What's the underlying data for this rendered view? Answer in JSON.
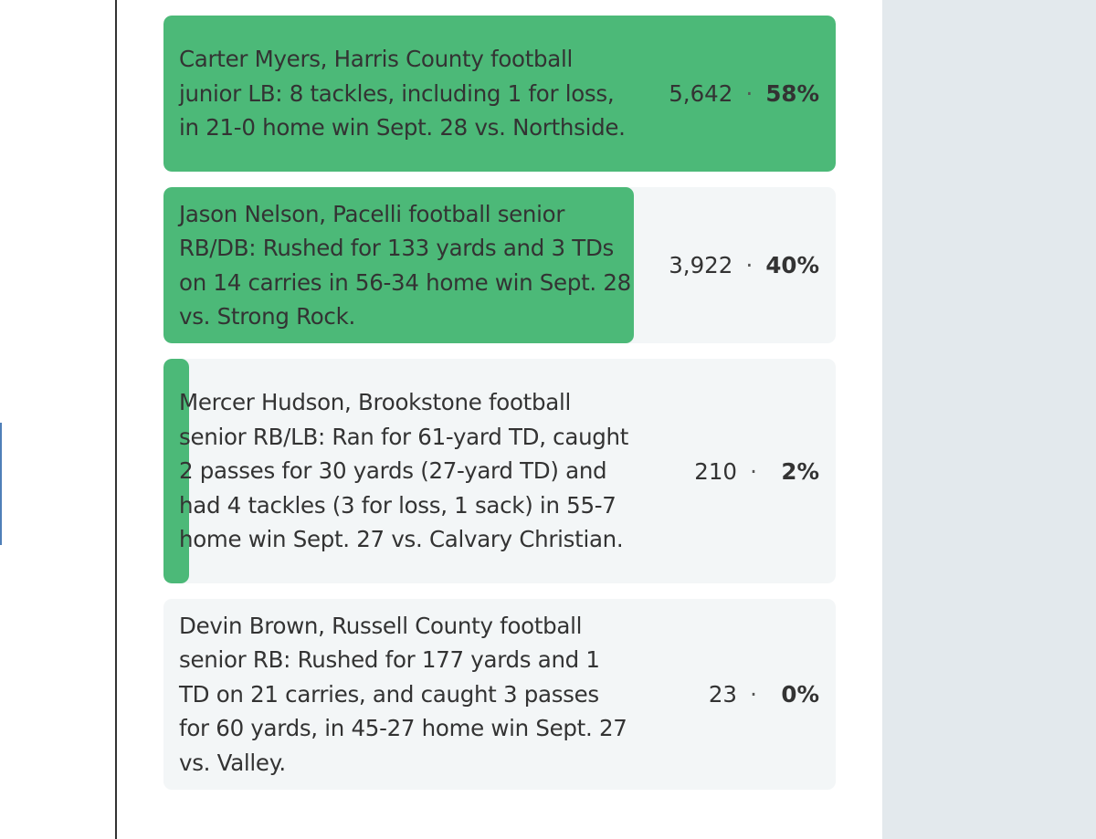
{
  "poll": {
    "options": [
      {
        "text": "Carter Myers, Harris County football junior LB: 8 tackles, including 1 for loss, in 21-0 home win Sept. 28 vs. Northside.",
        "votes": "5,642",
        "separator": "·",
        "percent": "58%",
        "share": 0.58,
        "color": "#4cb978"
      },
      {
        "text": "Jason Nelson, Pacelli football senior RB/DB: Rushed for 133 yards and 3 TDs on 14 carries in 56-34 home win Sept. 28 vs. Strong Rock.",
        "votes": "3,922",
        "separator": "·",
        "percent": "40%",
        "share": 0.4,
        "color": "#4cb978"
      },
      {
        "text": "Mercer Hudson, Brookstone football senior RB/LB: Ran for 61-yard TD, caught 2 passes for 30 yards (27-yard TD) and had 4 tackles (3 for loss, 1 sack) in 55-7 home win Sept. 27 vs. Calvary Christian.",
        "votes": "210",
        "separator": "·",
        "percent": "2%",
        "share": 0.02,
        "color": "#4cb978"
      },
      {
        "text": "Devin Brown, Russell County football senior RB: Rushed for 177 yards and 1 TD on 21 carries, and caught 3 passes for 60 yards, in 45-27 home win Sept. 27 vs. Valley.",
        "votes": "23",
        "separator": "·",
        "percent": "0%",
        "share": 0.0,
        "color": "#4cb978"
      }
    ]
  },
  "colors": {
    "bar_fill": "#4cb978",
    "option_background": "#f3f6f7",
    "side_panel": "#e3e9ed",
    "text": "#333333"
  }
}
